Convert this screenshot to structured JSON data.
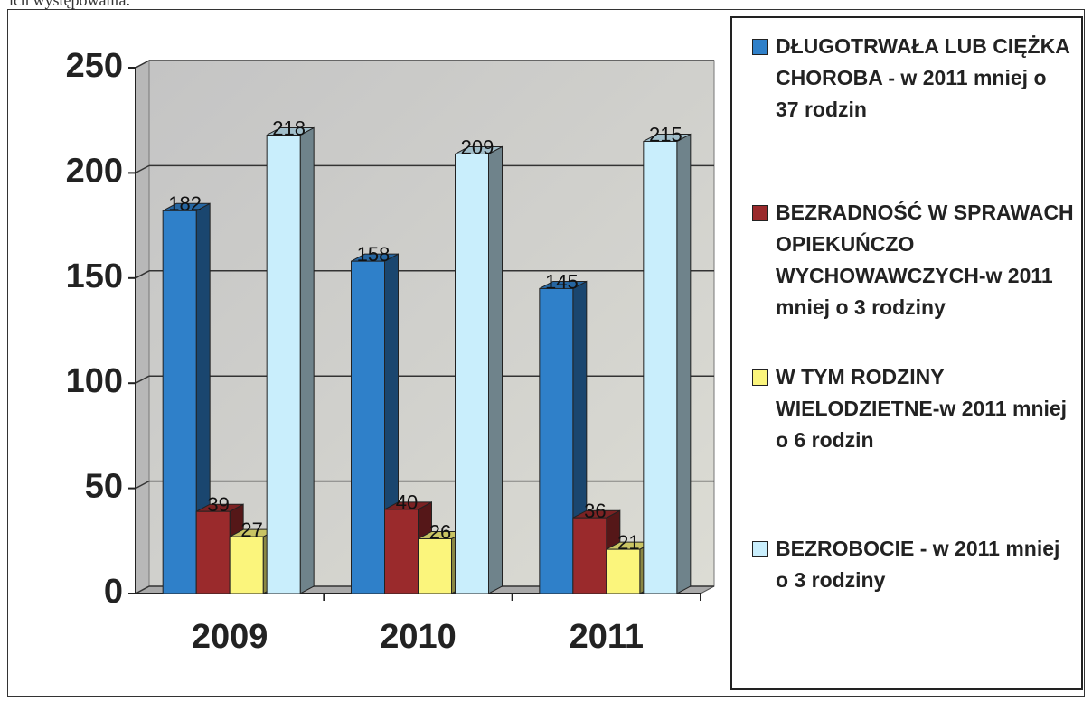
{
  "caption": "ich występowania.",
  "chart_data": {
    "type": "bar3d",
    "categories": [
      "2009",
      "2010",
      "2011"
    ],
    "series": [
      {
        "name": "DŁUGOTRWAŁA LUB CIĘŻKA CHOROBA - w 2011 mniej o 37 rodzin",
        "color": "#2f80c9",
        "values": [
          182,
          158,
          145
        ]
      },
      {
        "name": "BEZRADNOŚĆ W SPRAWACH OPIEKUŃCZO WYCHOWAWCZYCH-w 2011 mniej o 3 rodziny",
        "color": "#9a2a2c",
        "values": [
          39,
          40,
          36
        ]
      },
      {
        "name": "W TYM RODZINY WIELODZIETNE-w 2011 mniej o 6 rodzin",
        "color": "#fbf57c",
        "values": [
          27,
          26,
          21
        ]
      },
      {
        "name": "BEZROBOCIE - w 2011 mniej o 3 rodziny",
        "color": "#c9eefc",
        "values": [
          218,
          209,
          215
        ]
      }
    ],
    "ylim": [
      0,
      250
    ],
    "yticks": [
      0,
      50,
      100,
      150,
      200,
      250
    ],
    "grid": true,
    "legend": "right"
  }
}
